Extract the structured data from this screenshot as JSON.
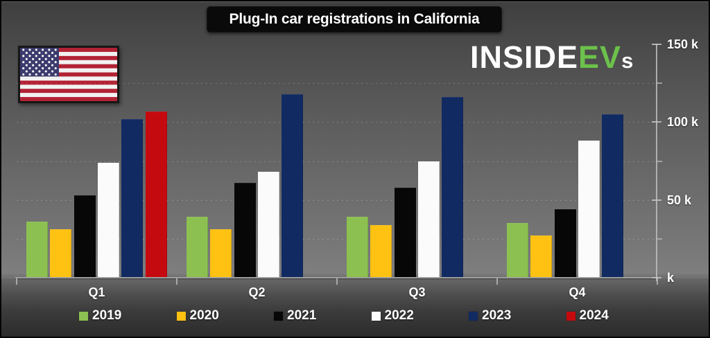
{
  "title_box": {
    "text": "Plug-In car registrations in California"
  },
  "brand": {
    "part1": "INSIDE",
    "part2": "EV",
    "part3": "s",
    "accent_color": "#6CC14B"
  },
  "flag": {
    "name": "united-states-flag"
  },
  "chart_data": {
    "type": "bar",
    "title": "Plug-In car registrations in California",
    "categories": [
      "Q1",
      "Q2",
      "Q3",
      "Q4"
    ],
    "unit": "k",
    "series": [
      {
        "name": "2019",
        "color": "#8CC152",
        "values": [
          36,
          39,
          39,
          35
        ]
      },
      {
        "name": "2020",
        "color": "#FFC112",
        "values": [
          31,
          31,
          34,
          27
        ]
      },
      {
        "name": "2021",
        "color": "#070707",
        "values": [
          53,
          61,
          58,
          44
        ]
      },
      {
        "name": "2022",
        "color": "#FBFBFB",
        "values": [
          74,
          68,
          75,
          88
        ]
      },
      {
        "name": "2023",
        "color": "#112A62",
        "values": [
          102,
          118,
          116,
          105
        ]
      },
      {
        "name": "2024",
        "color": "#C50A0F",
        "values": [
          107,
          null,
          null,
          null
        ]
      }
    ],
    "ylim": [
      0,
      150
    ],
    "yticks": [
      {
        "value": 150,
        "label": "150 k"
      },
      {
        "value": 100,
        "label": "100 k"
      },
      {
        "value": 50,
        "label": "50 k"
      },
      {
        "value": 0,
        "label": "k"
      }
    ],
    "minor_yticks": [
      125,
      75,
      25
    ],
    "axis_side": "right",
    "legend_position": "bottom",
    "grid": "faint dotted horizontal lines every 25k"
  }
}
